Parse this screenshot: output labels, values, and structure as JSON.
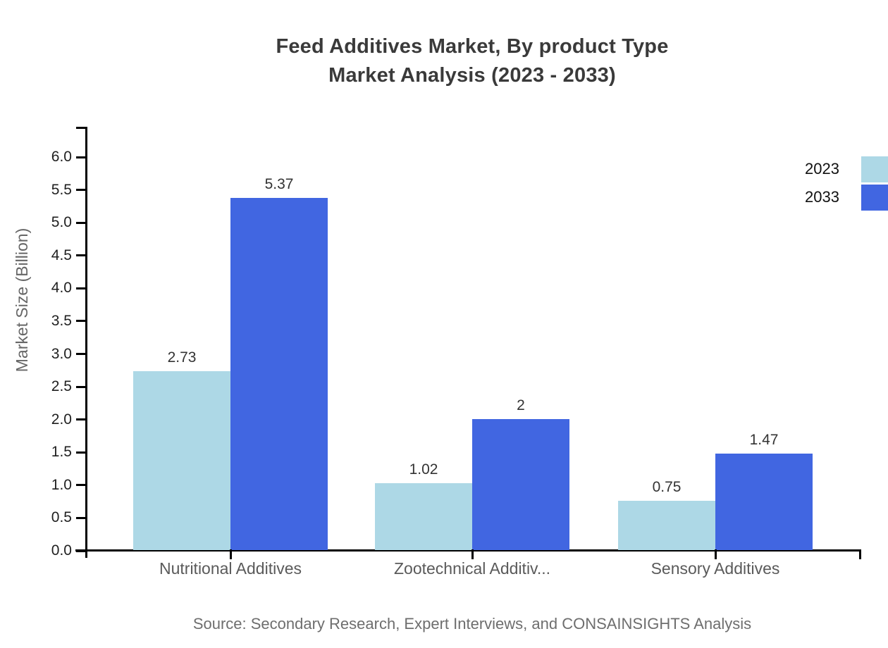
{
  "page": {
    "title_line1": "Feed Additives Market, By product Type",
    "title_line2": "Market Analysis (2023 - 2033)",
    "source": "Source: Secondary Research, Expert Interviews, and CONSAINSIGHTS Analysis"
  },
  "chart_data": {
    "type": "bar",
    "title": "Feed Additives Market, By product Type Market Analysis (2023 - 2033)",
    "xlabel": "",
    "ylabel": "Market Size (Billion)",
    "categories": [
      "Nutritional Additives",
      "Zootechnical Additiv...",
      "Sensory Additives"
    ],
    "series": [
      {
        "name": "2023",
        "color": "#ADD8E6",
        "values": [
          2.73,
          1.02,
          0.75
        ],
        "value_labels": [
          "2.73",
          "1.02",
          "0.75"
        ]
      },
      {
        "name": "2033",
        "color": "#4166E1",
        "values": [
          5.37,
          2,
          1.47
        ],
        "value_labels": [
          "5.37",
          "2",
          "1.47"
        ]
      }
    ],
    "ylim": [
      0,
      6.5
    ],
    "y_ticks": [
      0,
      0.5,
      1,
      1.5,
      2,
      2.5,
      3,
      3.5,
      4,
      4.5,
      5,
      5.5,
      6
    ],
    "y_tick_labels": [
      "0.0",
      "0.5",
      "1.0",
      "1.5",
      "2.0",
      "2.5",
      "3.0",
      "3.5",
      "4.0",
      "4.5",
      "5.0",
      "5.5",
      "6.0"
    ],
    "legend_position": "top-right",
    "grid": false,
    "background": "#ffffff",
    "axis_color": "#000000"
  },
  "legend": {
    "items": [
      {
        "label": "2023",
        "color": "#ADD8E6"
      },
      {
        "label": "2033",
        "color": "#4166E1"
      }
    ]
  }
}
